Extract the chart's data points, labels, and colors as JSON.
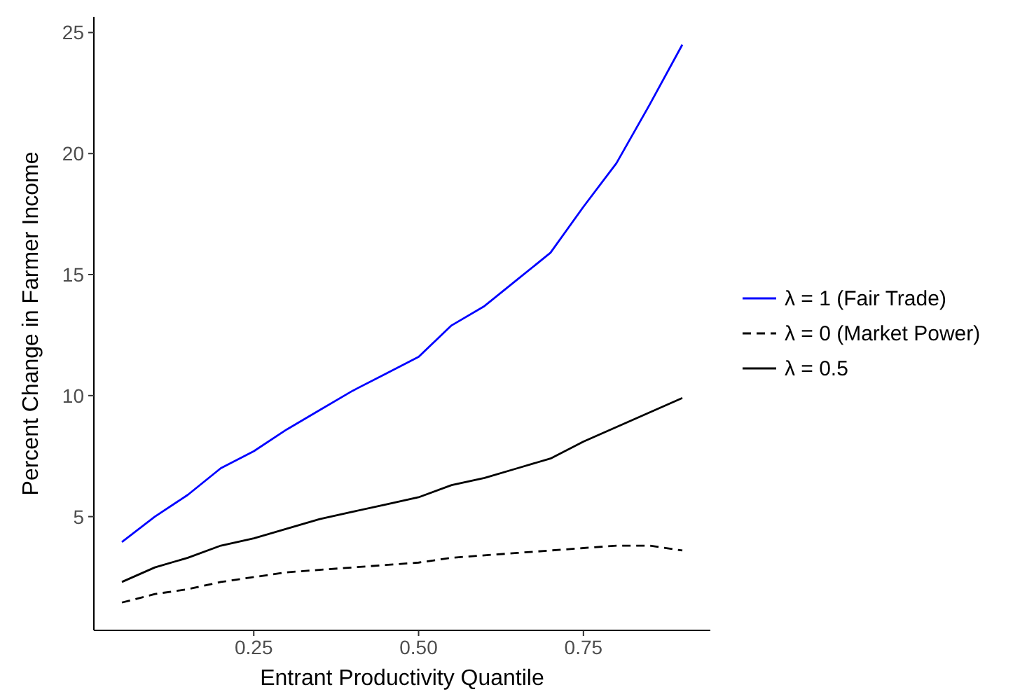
{
  "chart_data": {
    "type": "line",
    "xlabel": "Entrant Productivity Quantile",
    "ylabel": "Percent Change in Farmer Income",
    "x": [
      0.05,
      0.1,
      0.15,
      0.2,
      0.25,
      0.3,
      0.35,
      0.4,
      0.45,
      0.5,
      0.55,
      0.6,
      0.65,
      0.7,
      0.75,
      0.8,
      0.85,
      0.9
    ],
    "series": [
      {
        "name": "λ = 1 (Fair Trade)",
        "color": "#0000ff",
        "line_style": "solid",
        "values": [
          3.95,
          5.0,
          5.9,
          7.0,
          7.7,
          8.6,
          9.4,
          10.2,
          10.9,
          11.6,
          12.9,
          13.7,
          14.8,
          15.9,
          17.8,
          19.6,
          22.0,
          24.5
        ]
      },
      {
        "name": "λ = 0 (Market Power)",
        "color": "#000000",
        "line_style": "dashed",
        "values": [
          1.45,
          1.8,
          2.0,
          2.3,
          2.5,
          2.7,
          2.8,
          2.9,
          3.0,
          3.1,
          3.3,
          3.4,
          3.5,
          3.6,
          3.7,
          3.8,
          3.8,
          3.6
        ]
      },
      {
        "name": "λ = 0.5",
        "color": "#000000",
        "line_style": "solid",
        "values": [
          2.3,
          2.9,
          3.3,
          3.8,
          4.1,
          4.5,
          4.9,
          5.2,
          5.5,
          5.8,
          6.3,
          6.6,
          7.0,
          7.4,
          8.1,
          8.7,
          9.3,
          9.9
        ]
      }
    ],
    "xlim": [
      0.0075,
      0.9425
    ],
    "ylim": [
      0.3,
      25.65
    ],
    "xticks": [
      {
        "value": 0.25,
        "label": "0.25"
      },
      {
        "value": 0.5,
        "label": "0.50"
      },
      {
        "value": 0.75,
        "label": "0.75"
      }
    ],
    "yticks": [
      5,
      10,
      15,
      20,
      25
    ],
    "grid": false,
    "legend": "right"
  }
}
